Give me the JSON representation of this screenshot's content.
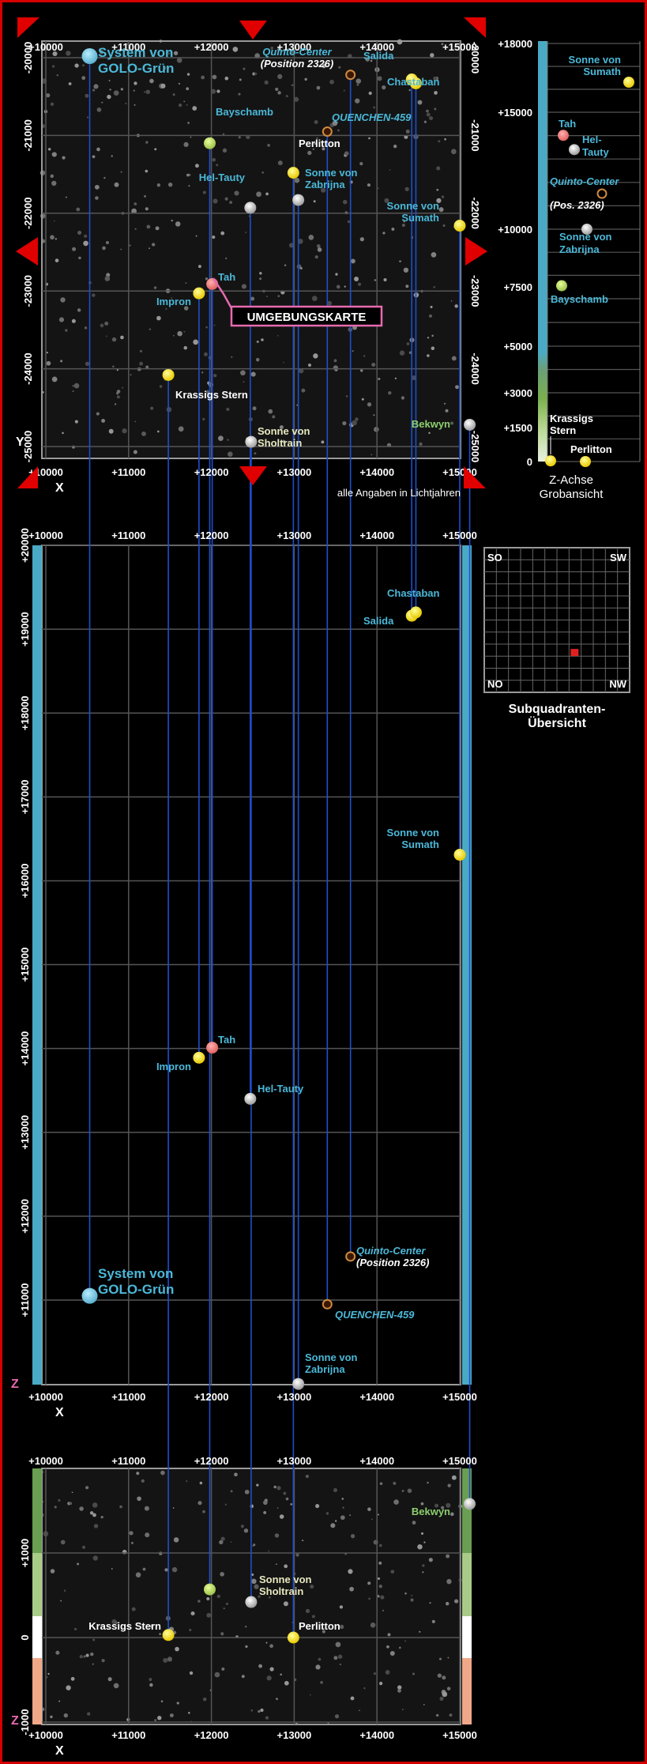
{
  "colors": {
    "frame": "#d40000",
    "label_blue": "#4bb8d8",
    "label_white": "#ffffff",
    "label_green": "#8ccf6e",
    "line": "#1e4fc9",
    "grid": "#555555",
    "axis_bar": "#4aaac5",
    "star_yellow": "#ffee00",
    "star_red": "#f07878",
    "star_grey": "#c8c8c8",
    "star_blue": "#6ec6e0",
    "star_green": "#bcd86e"
  },
  "top_map": {
    "x_ticks": [
      "+10000",
      "+11000",
      "+12000",
      "+13000",
      "+14000",
      "+15000"
    ],
    "y_ticks": [
      "-20000",
      "-21000",
      "-22000",
      "-23000",
      "-24000",
      "-25000"
    ],
    "x_axis_label": "X",
    "y_axis_label": "Y",
    "note": "alle Angaben in Lichtjahren",
    "title_box": "UMGEBUNGSKARTE"
  },
  "z_overview": {
    "ticks": [
      "+18000",
      "+15000",
      "+10000",
      "+7500",
      "+5000",
      "+3000",
      "+1500",
      "0"
    ],
    "caption_line1": "Z-Achse",
    "caption_line2": "Grobansicht",
    "labels": {
      "sumath": "Sonne von Sumath",
      "tah": "Tah",
      "heltauty": "Hel- Tauty",
      "quinto": "Quinto-Center",
      "quinto_pos": "(Pos. 2326)",
      "zabrijna": "Sonne von Zabrijna",
      "bayschamb": "Bayschamb",
      "krassig": "Krassigs Stern",
      "perlitton": "Perlitton"
    }
  },
  "middle_map": {
    "x_ticks": [
      "+10000",
      "+11000",
      "+12000",
      "+13000",
      "+14000",
      "+15000"
    ],
    "z_ticks": [
      "+20000",
      "+19000",
      "+18000",
      "+17000",
      "+16000",
      "+15000",
      "+14000",
      "+13000",
      "+12000",
      "+11000"
    ],
    "x_axis_label": "X",
    "z_axis_label": "Z"
  },
  "subquadrant": {
    "title_line1": "Subquadranten-",
    "title_line2": "Übersicht",
    "corners": [
      "SO",
      "SW",
      "NO",
      "NW"
    ]
  },
  "bottom_map": {
    "x_ticks": [
      "+10000",
      "+11000",
      "+12000",
      "+13000",
      "+14000",
      "+15000"
    ],
    "z_ticks": [
      "+1000",
      "0",
      "-1000"
    ],
    "x_axis_label": "X",
    "z_axis_label": "Z"
  },
  "stars": [
    {
      "id": "golo",
      "name": "System von GOLO-Grün",
      "x": 10530,
      "y": -19980,
      "z": 11050,
      "color": "blue",
      "size": "big"
    },
    {
      "id": "quinto",
      "name": "Quinto-Center",
      "sub": "(Position 2326)",
      "x": 13680,
      "y": -20220,
      "z": 11520,
      "color": "ring"
    },
    {
      "id": "salida",
      "name": "Salida",
      "x": 14420,
      "y": -20280,
      "z": 19160,
      "color": "yellow"
    },
    {
      "id": "chastaban",
      "name": "Chastaban",
      "x": 14470,
      "y": -20330,
      "z": 19200,
      "color": "yellow"
    },
    {
      "id": "bayschamb",
      "name": "Bayschamb",
      "x": 11980,
      "y": -21100,
      "z": 7550,
      "color": "green"
    },
    {
      "id": "quenchen",
      "name": "QUENCHEN-459",
      "x": 13400,
      "y": -20950,
      "z": 10950,
      "color": "ring"
    },
    {
      "id": "perlitton",
      "name": "Perlitton",
      "x": 12990,
      "y": -21480,
      "z": 0,
      "color": "yellow"
    },
    {
      "id": "heltauty",
      "name": "Hel-Tauty",
      "x": 12470,
      "y": -21930,
      "z": 13400,
      "color": "grey"
    },
    {
      "id": "zabrijna",
      "name": "Sonne von Zabrijna",
      "x": 13050,
      "y": -21830,
      "z": 10000,
      "color": "grey"
    },
    {
      "id": "sumath",
      "name": "Sonne von Sumath",
      "x": 15000,
      "y": -22160,
      "z": 16310,
      "color": "yellow"
    },
    {
      "id": "tah",
      "name": "Tah",
      "x": 12010,
      "y": -22910,
      "z": 14010,
      "color": "red"
    },
    {
      "id": "impron",
      "name": "Impron",
      "x": 11850,
      "y": -23030,
      "z": 13890,
      "color": "yellow"
    },
    {
      "id": "krassig",
      "name": "Krassigs Stern",
      "x": 11480,
      "y": -24080,
      "z": 30,
      "color": "yellow"
    },
    {
      "id": "sholtrain",
      "name": "Sonne von Sholtrain",
      "x": 12480,
      "y": -24940,
      "z": 420,
      "color": "grey"
    },
    {
      "id": "bekwyn",
      "name": "Bekwyn",
      "x": 15120,
      "y": -24720,
      "z": 1580,
      "color": "grey"
    }
  ]
}
